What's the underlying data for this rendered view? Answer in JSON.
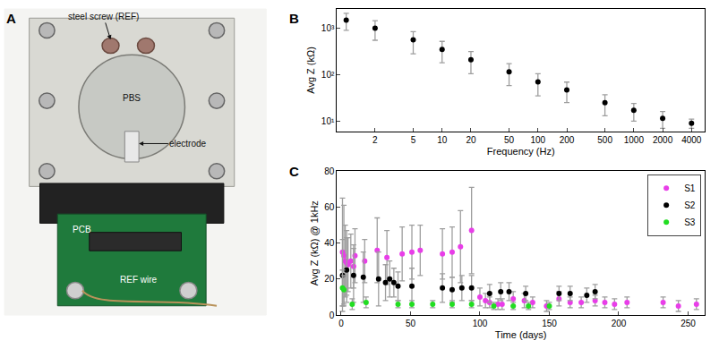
{
  "photo": {
    "title": "A",
    "labels": [
      "steel screw (REF)",
      "PBS",
      "electrode",
      "PCB",
      "REF wire"
    ]
  },
  "chart_data": [
    {
      "title": "B",
      "type": "scatter",
      "log": true,
      "grid": false,
      "marker": "circle",
      "x": [
        1,
        2,
        5,
        10,
        20,
        50,
        100,
        200,
        500,
        1000,
        2000,
        4000
      ],
      "series": [
        {
          "color": "#000000",
          "values": [
            1500,
            1000,
            560,
            350,
            210,
            115,
            70,
            47,
            25,
            17,
            11.5,
            9
          ],
          "error": [
            600,
            450,
            280,
            170,
            105,
            57,
            35,
            22,
            12,
            7,
            4.5,
            2
          ]
        }
      ],
      "x_label": "Frequency (Hz)",
      "y_label": "Avg Z (kΩ)",
      "xlim": [
        0.8,
        5500
      ],
      "ylim": [
        6,
        2600
      ],
      "xticks": [
        2,
        5,
        10,
        20,
        50,
        100,
        200,
        500,
        1000,
        2000,
        4000
      ],
      "yticks": [
        {
          "value": 10,
          "label": "10¹"
        },
        {
          "value": 100,
          "label": "10²"
        },
        {
          "value": 1000,
          "label": "10³"
        }
      ]
    },
    {
      "title": "C",
      "type": "scatter",
      "grid": false,
      "marker": "circle",
      "legend": "top right",
      "series": [
        {
          "name": "S1",
          "color": "#e83ee8",
          "x": [
            1,
            2,
            3,
            4,
            5,
            7,
            9,
            10,
            17,
            26,
            33,
            44,
            51,
            57,
            73,
            80,
            86,
            94,
            100,
            104,
            107,
            113,
            116,
            124,
            132,
            138,
            148,
            157,
            165,
            173,
            183,
            190,
            197,
            206,
            232,
            243,
            256
          ],
          "values": [
            35,
            33,
            30,
            29,
            28,
            30,
            27,
            33,
            30,
            36,
            32,
            34,
            35,
            36,
            34,
            35,
            38,
            47,
            10,
            8,
            7,
            6,
            6,
            9,
            8,
            7,
            5,
            9,
            7,
            7,
            8,
            7,
            6,
            7,
            7,
            5,
            6
          ],
          "error": [
            30,
            28,
            20,
            18,
            15,
            15,
            12,
            15,
            12,
            18,
            15,
            15,
            15,
            14,
            14,
            14,
            20,
            24,
            5,
            4,
            3,
            3,
            3,
            4,
            4,
            3,
            3,
            4,
            3,
            3,
            3,
            3,
            3,
            3,
            3,
            3,
            3
          ]
        },
        {
          "name": "S2",
          "color": "#000000",
          "x": [
            1,
            4,
            9,
            16,
            27,
            32,
            35,
            38,
            41,
            51,
            73,
            80,
            87,
            94,
            107,
            115,
            121,
            133,
            157,
            165,
            177,
            183
          ],
          "values": [
            22,
            25,
            22,
            21,
            20,
            18,
            20,
            18,
            16,
            16,
            15,
            14,
            15,
            15,
            12,
            13,
            13,
            12,
            12,
            12,
            11,
            13
          ],
          "error": [
            20,
            18,
            15,
            14,
            15,
            10,
            10,
            8,
            8,
            10,
            8,
            7,
            7,
            7,
            5,
            5,
            5,
            4,
            4,
            4,
            4,
            4
          ]
        },
        {
          "name": "S3",
          "color": "#22dd22",
          "x": [
            1,
            2,
            8,
            18,
            41,
            51,
            66,
            80,
            94,
            110,
            124,
            135,
            150
          ],
          "values": [
            15,
            14,
            6,
            7,
            6,
            6,
            6,
            6,
            6,
            5,
            5,
            5,
            5
          ],
          "error": [
            10,
            8,
            3,
            3,
            2,
            2,
            2,
            2,
            2,
            2,
            2,
            2,
            2
          ]
        }
      ],
      "x_label": "Time (days)",
      "y_label": "Avg Z (kΩ) @ 1kHz",
      "xlim": [
        -3,
        262
      ],
      "ylim": [
        0,
        80
      ],
      "xticks": [
        0,
        50,
        100,
        150,
        200,
        250
      ],
      "yticks": [
        0,
        20,
        40,
        60,
        80
      ]
    }
  ]
}
